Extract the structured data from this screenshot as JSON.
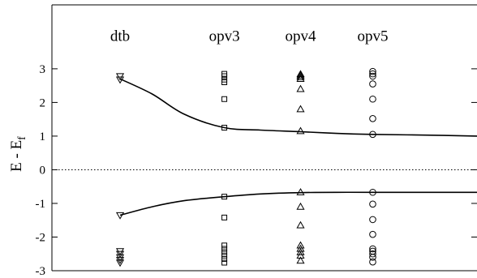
{
  "chart_data": {
    "type": "scatter",
    "title": "",
    "xlabel": "",
    "ylabel": "E - E",
    "ylabel_subscript": "f",
    "ylim": [
      -3,
      4.9
    ],
    "xlim": [
      0,
      10.6
    ],
    "yticks": [
      -3,
      -2,
      -1,
      0,
      1,
      2,
      3
    ],
    "ytick_labels": [
      "-3",
      "-2",
      "-1",
      "0",
      "1",
      "2",
      "3"
    ],
    "grid": false,
    "legend": "none",
    "reference_line": {
      "y": 0,
      "style": "dotted"
    },
    "categories": [
      {
        "label": "dtb",
        "x": 1.7,
        "label_y": 4.0
      },
      {
        "label": "opv3",
        "x": 4.3,
        "label_y": 4.0
      },
      {
        "label": "opv4",
        "x": 6.2,
        "label_y": 4.0
      },
      {
        "label": "opv5",
        "x": 8.0,
        "label_y": 4.0
      }
    ],
    "series": [
      {
        "category": "dtb",
        "marker": "triangle-down",
        "x": 1.7,
        "y": [
          2.78,
          2.68,
          -1.35,
          -2.42,
          -2.5,
          -2.6,
          -2.68,
          -2.76
        ]
      },
      {
        "category": "opv3",
        "marker": "square",
        "x": 4.3,
        "y": [
          2.85,
          2.78,
          2.68,
          2.6,
          2.1,
          1.25,
          -0.8,
          -1.42,
          -2.25,
          -2.35,
          -2.45,
          -2.55,
          -2.65,
          -2.76
        ]
      },
      {
        "category": "opv4",
        "marker": "triangle-up",
        "x": 6.2,
        "y": [
          2.84,
          2.8,
          2.75,
          2.7,
          2.4,
          1.8,
          1.15,
          -0.67,
          -1.1,
          -1.65,
          -2.25,
          -2.35,
          -2.45,
          -2.55,
          -2.7
        ]
      },
      {
        "category": "opv5",
        "marker": "circle",
        "x": 8.0,
        "y": [
          2.92,
          2.85,
          2.78,
          2.55,
          2.1,
          1.52,
          1.05,
          -0.67,
          -1.02,
          -1.48,
          -1.92,
          -2.35,
          -2.42,
          -2.5,
          -2.6,
          -2.74
        ]
      }
    ],
    "curves": [
      {
        "label": "upper",
        "x": [
          1.7,
          2.5,
          3.3,
          4.3,
          5.2,
          6.2,
          7.1,
          8.0,
          9.3,
          10.6
        ],
        "y": [
          2.7,
          2.25,
          1.65,
          1.25,
          1.18,
          1.13,
          1.08,
          1.05,
          1.03,
          1.0
        ]
      },
      {
        "label": "lower",
        "x": [
          1.7,
          2.5,
          3.3,
          4.3,
          5.2,
          6.2,
          7.1,
          8.0,
          9.3,
          10.6
        ],
        "y": [
          -1.35,
          -1.1,
          -0.92,
          -0.8,
          -0.72,
          -0.68,
          -0.67,
          -0.67,
          -0.67,
          -0.67
        ]
      }
    ]
  }
}
